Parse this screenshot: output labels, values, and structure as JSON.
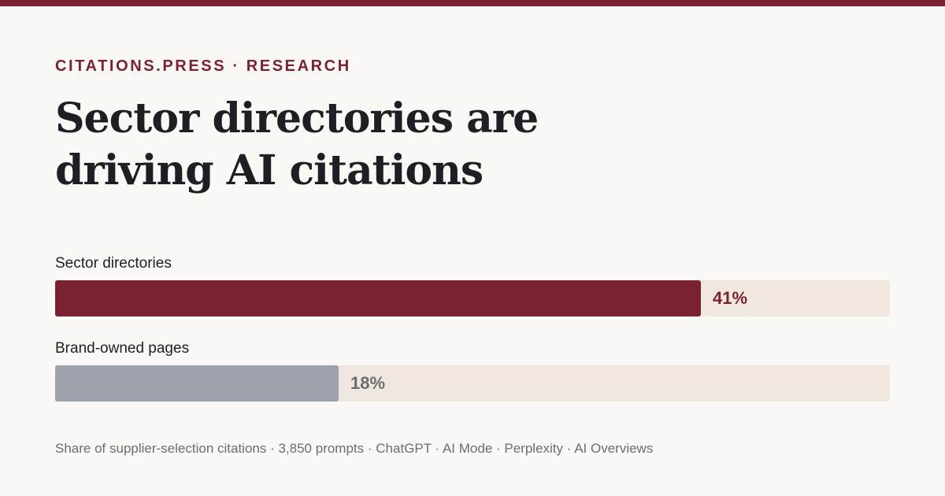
{
  "colors": {
    "accent": "#7a2232",
    "muted": "#9ea2ad",
    "muted_text": "#6c6c72",
    "track": "#f0e8df",
    "background": "#faf8f5"
  },
  "eyebrow": "CITATIONS.PRESS · RESEARCH",
  "headline": {
    "line1": "Sector directories are",
    "line2": "driving AI citations"
  },
  "chart_data": {
    "type": "bar",
    "orientation": "horizontal",
    "unit": "%",
    "xlim": [
      0,
      53
    ],
    "grid": false,
    "categories": [
      "Sector directories",
      "Brand-owned pages"
    ],
    "values": [
      41,
      18
    ],
    "value_labels": [
      "41%",
      "18%"
    ]
  },
  "footnote": "Share of supplier-selection citations · 3,850 prompts · ChatGPT · AI Mode · Perplexity · AI Overviews"
}
